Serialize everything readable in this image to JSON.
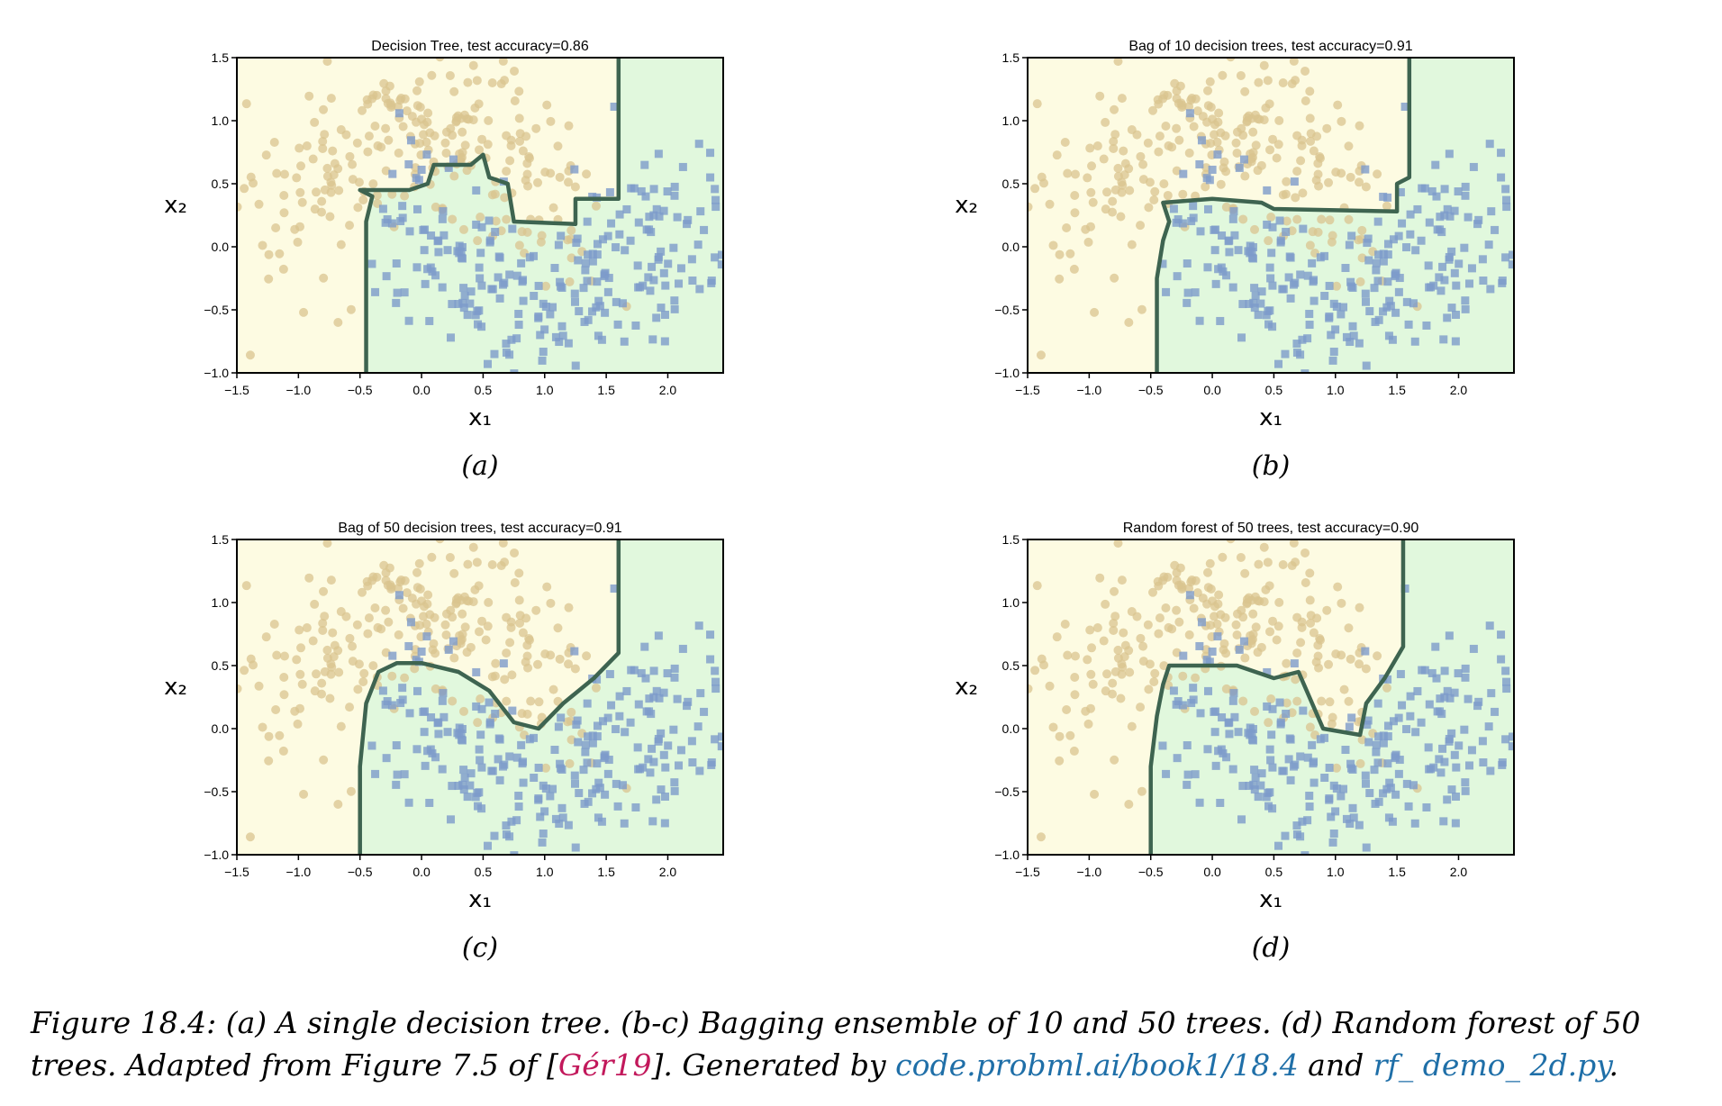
{
  "figure": {
    "panels": [
      {
        "id": "a",
        "title": "Decision Tree, test accuracy=0.86",
        "label": "(a)"
      },
      {
        "id": "b",
        "title": "Bag of 10 decision trees, test accuracy=0.91",
        "label": "(b)"
      },
      {
        "id": "c",
        "title": "Bag of 50 decision trees, test accuracy=0.91",
        "label": "(c)"
      },
      {
        "id": "d",
        "title": "Random forest of 50 trees, test accuracy=0.90",
        "label": "(d)"
      }
    ],
    "xlabel": "x₁",
    "ylabel": "x₂",
    "xticks": [
      "−1.5",
      "−1.0",
      "−0.5",
      "0.0",
      "0.5",
      "1.0",
      "1.5",
      "2.0"
    ],
    "yticks": [
      "−1.0",
      "−0.5",
      "0.0",
      "0.5",
      "1.0",
      "1.5"
    ]
  },
  "caption": {
    "part1": "Figure 18.4: (a) A single decision tree. (b-c) Bagging ensemble of 10 and 50 trees. (d) Random forest of 50 trees. Adapted from Figure 7.5 of [",
    "cite": "Gér19",
    "part2": "]. Generated by ",
    "link1": "code.probml.ai/book1/18.4",
    "part3": " and ",
    "link2": "rf_ demo_ 2d.py",
    "part4": "."
  },
  "colors": {
    "class0_region": "#fdfbe2",
    "class1_region": "#e1f8dd",
    "class0_marker": "#d9c48f",
    "class1_marker": "#7d9bcb",
    "boundary": "#3e6450"
  },
  "chart_data": [
    {
      "type": "scatter",
      "title": "Decision Tree, test accuracy=0.86",
      "xlabel": "x₁",
      "ylabel": "x₂",
      "xlim": [
        -1.5,
        2.45
      ],
      "ylim": [
        -1.0,
        1.5
      ],
      "series": [
        {
          "marker": "circle",
          "color": "#d9c48f",
          "values": "moons class 0, approx. 250 points"
        },
        {
          "marker": "square",
          "color": "#7d9bcb",
          "values": "moons class 1, approx. 250 points"
        }
      ],
      "boundary": [
        [
          -0.45,
          -1.0
        ],
        [
          -0.45,
          0.2
        ],
        [
          -0.4,
          0.4
        ],
        [
          -0.5,
          0.45
        ],
        [
          -0.1,
          0.45
        ],
        [
          0.05,
          0.5
        ],
        [
          0.1,
          0.65
        ],
        [
          0.4,
          0.65
        ],
        [
          0.5,
          0.73
        ],
        [
          0.55,
          0.55
        ],
        [
          0.7,
          0.5
        ],
        [
          0.75,
          0.2
        ],
        [
          1.25,
          0.18
        ],
        [
          1.25,
          0.38
        ],
        [
          1.6,
          0.38
        ],
        [
          1.6,
          1.5
        ]
      ]
    },
    {
      "type": "scatter",
      "title": "Bag of 10 decision trees, test accuracy=0.91",
      "xlabel": "x₁",
      "ylabel": "x₂",
      "xlim": [
        -1.5,
        2.45
      ],
      "ylim": [
        -1.0,
        1.5
      ],
      "boundary": [
        [
          -0.45,
          -1.0
        ],
        [
          -0.45,
          -0.25
        ],
        [
          -0.4,
          0.05
        ],
        [
          -0.35,
          0.2
        ],
        [
          -0.4,
          0.35
        ],
        [
          0.0,
          0.38
        ],
        [
          0.4,
          0.35
        ],
        [
          0.5,
          0.3
        ],
        [
          1.5,
          0.28
        ],
        [
          1.5,
          0.5
        ],
        [
          1.6,
          0.55
        ],
        [
          1.6,
          1.5
        ]
      ]
    },
    {
      "type": "scatter",
      "title": "Bag of 50 decision trees, test accuracy=0.91",
      "xlabel": "x₁",
      "ylabel": "x₂",
      "xlim": [
        -1.5,
        2.45
      ],
      "ylim": [
        -1.0,
        1.5
      ],
      "boundary": [
        [
          -0.5,
          -1.0
        ],
        [
          -0.5,
          -0.3
        ],
        [
          -0.45,
          0.2
        ],
        [
          -0.35,
          0.45
        ],
        [
          -0.2,
          0.52
        ],
        [
          0.0,
          0.52
        ],
        [
          0.3,
          0.45
        ],
        [
          0.55,
          0.3
        ],
        [
          0.75,
          0.05
        ],
        [
          0.95,
          0.0
        ],
        [
          1.15,
          0.2
        ],
        [
          1.4,
          0.4
        ],
        [
          1.6,
          0.6
        ],
        [
          1.6,
          1.5
        ]
      ]
    },
    {
      "type": "scatter",
      "title": "Random forest of 50 trees, test accuracy=0.90",
      "xlabel": "x₁",
      "ylabel": "x₂",
      "xlim": [
        -1.5,
        2.45
      ],
      "ylim": [
        -1.0,
        1.5
      ],
      "boundary": [
        [
          -0.5,
          -1.0
        ],
        [
          -0.5,
          -0.3
        ],
        [
          -0.45,
          0.1
        ],
        [
          -0.4,
          0.35
        ],
        [
          -0.35,
          0.5
        ],
        [
          0.2,
          0.5
        ],
        [
          0.5,
          0.4
        ],
        [
          0.7,
          0.45
        ],
        [
          0.9,
          0.0
        ],
        [
          1.2,
          -0.05
        ],
        [
          1.25,
          0.2
        ],
        [
          1.4,
          0.4
        ],
        [
          1.55,
          0.65
        ],
        [
          1.55,
          1.5
        ]
      ]
    }
  ]
}
